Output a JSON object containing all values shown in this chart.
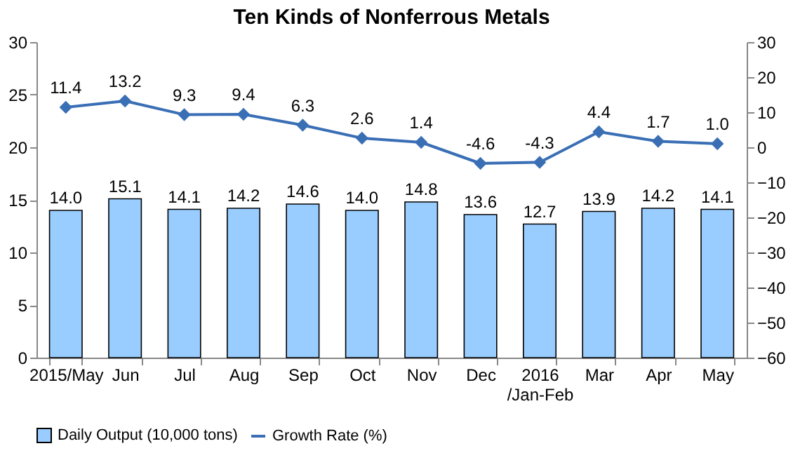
{
  "chart_data": {
    "type": "bar",
    "title": "Ten Kinds of Nonferrous Metals",
    "categories": [
      "2015/May",
      "Jun",
      "Jul",
      "Aug",
      "Sep",
      "Oct",
      "Nov",
      "Dec",
      "2016\n/Jan-Feb",
      "Mar",
      "Apr",
      "May"
    ],
    "series": [
      {
        "name": "Daily Output (10,000 tons)",
        "color": "#99ccff",
        "values": [
          14.0,
          15.1,
          14.1,
          14.2,
          14.6,
          14.0,
          14.8,
          13.6,
          12.7,
          13.9,
          14.2,
          14.1
        ],
        "value_labels": [
          "14.0",
          "15.1",
          "14.1",
          "14.2",
          "14.6",
          "14.0",
          "14.8",
          "13.6",
          "12.7",
          "13.9",
          "14.2",
          "14.1"
        ]
      },
      {
        "name": "Growth Rate (%)",
        "type": "line",
        "axis": "y2",
        "color": "#3a6fb5",
        "marker": "diamond",
        "values": [
          11.4,
          13.2,
          9.3,
          9.4,
          6.3,
          2.6,
          1.4,
          -4.6,
          -4.3,
          4.4,
          1.7,
          1.0
        ],
        "value_labels": [
          "11.4",
          "13.2",
          "9.3",
          "9.4",
          "6.3",
          "2.6",
          "1.4",
          "-4.6",
          "-4.3",
          "4.4",
          "1.7",
          "1.0"
        ]
      }
    ],
    "ylim": [
      0,
      30
    ],
    "yticks": [
      0,
      5,
      10,
      15,
      20,
      25,
      30
    ],
    "y2lim": [
      -60,
      30
    ],
    "y2ticks": [
      -60,
      -50,
      -40,
      -30,
      -20,
      -10,
      0,
      10,
      20,
      30
    ],
    "grid": false,
    "legend": "bottom"
  }
}
